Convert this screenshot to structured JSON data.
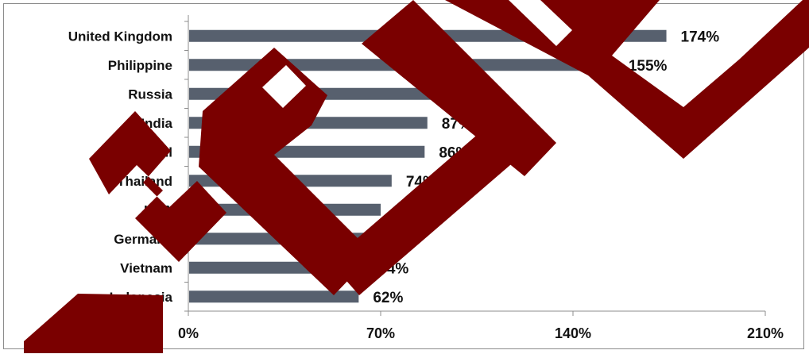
{
  "chart_data": {
    "type": "bar",
    "orientation": "horizontal",
    "title": "",
    "xlabel": "",
    "ylabel": "",
    "categories": [
      "United Kingdom",
      "Philippine",
      "Russia",
      "India",
      "Brazil",
      "Thailand",
      "USA",
      "Germany",
      "Vietnam",
      "Indonesia"
    ],
    "values": [
      174,
      155,
      93,
      87,
      86,
      74,
      70,
      66,
      64,
      62
    ],
    "value_labels": [
      "174%",
      "155%",
      "93%",
      "87%",
      "86%",
      "74%",
      "70%",
      "66%",
      "64%",
      "62%"
    ],
    "xlim": [
      0,
      210
    ],
    "xticks": [
      0,
      70,
      140,
      210
    ],
    "xtick_labels": [
      "0%",
      "70%",
      "140%",
      "210%"
    ],
    "grid": false,
    "legend": "none",
    "bar_color": "#57606e"
  },
  "watermark": {
    "text": "SAMPLE",
    "color": "#7a0000"
  }
}
